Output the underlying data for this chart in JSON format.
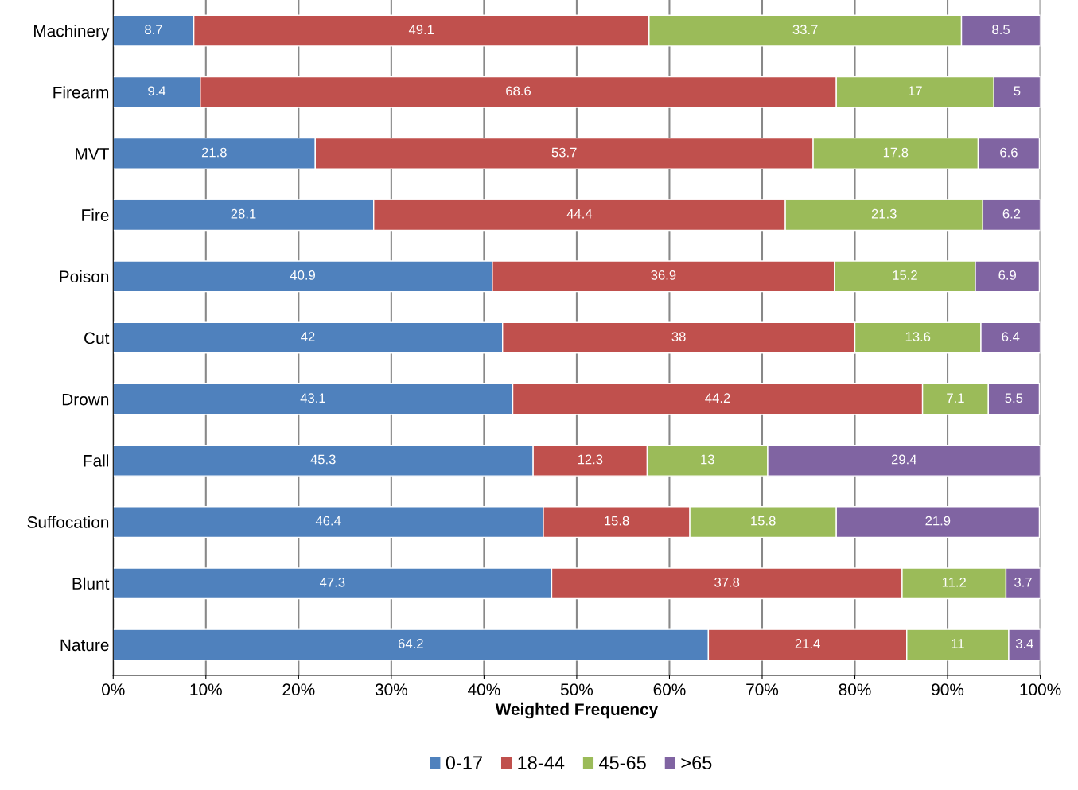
{
  "chart_data": {
    "type": "bar",
    "orientation": "horizontal",
    "stacked": true,
    "xlabel": "Weighted Frequency",
    "categories": [
      "Machinery",
      "Firearm",
      "MVT",
      "Fire",
      "Poison",
      "Cut",
      "Drown",
      "Fall",
      "Suffocation",
      "Blunt",
      "Nature"
    ],
    "series": [
      {
        "name": "0-17",
        "color": "#4f81bd",
        "values": [
          8.7,
          9.4,
          21.8,
          28.1,
          40.9,
          42,
          43.1,
          45.3,
          46.4,
          47.3,
          64.2
        ]
      },
      {
        "name": "18-44",
        "color": "#c0504d",
        "values": [
          49.1,
          68.6,
          53.7,
          44.4,
          36.9,
          38,
          44.2,
          12.3,
          15.8,
          37.8,
          21.4
        ]
      },
      {
        "name": "45-65",
        "color": "#9bbb59",
        "values": [
          33.7,
          17,
          17.8,
          21.3,
          15.2,
          13.6,
          7.1,
          13,
          15.8,
          11.2,
          11
        ]
      },
      {
        "name": ">65",
        "color": "#8064a2",
        "values": [
          8.5,
          5,
          6.6,
          6.2,
          6.9,
          6.4,
          5.5,
          29.4,
          21.9,
          3.7,
          3.4
        ]
      }
    ],
    "xlim": [
      0,
      100
    ],
    "xticks": [
      {
        "value": 0,
        "label": "0%"
      },
      {
        "value": 10,
        "label": "10%"
      },
      {
        "value": 20,
        "label": "20%"
      },
      {
        "value": 30,
        "label": "30%"
      },
      {
        "value": 40,
        "label": "40%"
      },
      {
        "value": 50,
        "label": "50%"
      },
      {
        "value": 60,
        "label": "60%"
      },
      {
        "value": 70,
        "label": "70%"
      },
      {
        "value": 80,
        "label": "80%"
      },
      {
        "value": 90,
        "label": "90%"
      },
      {
        "value": 100,
        "label": "100%"
      }
    ],
    "data_labels": true,
    "grid": "x",
    "legend": "bottom"
  }
}
